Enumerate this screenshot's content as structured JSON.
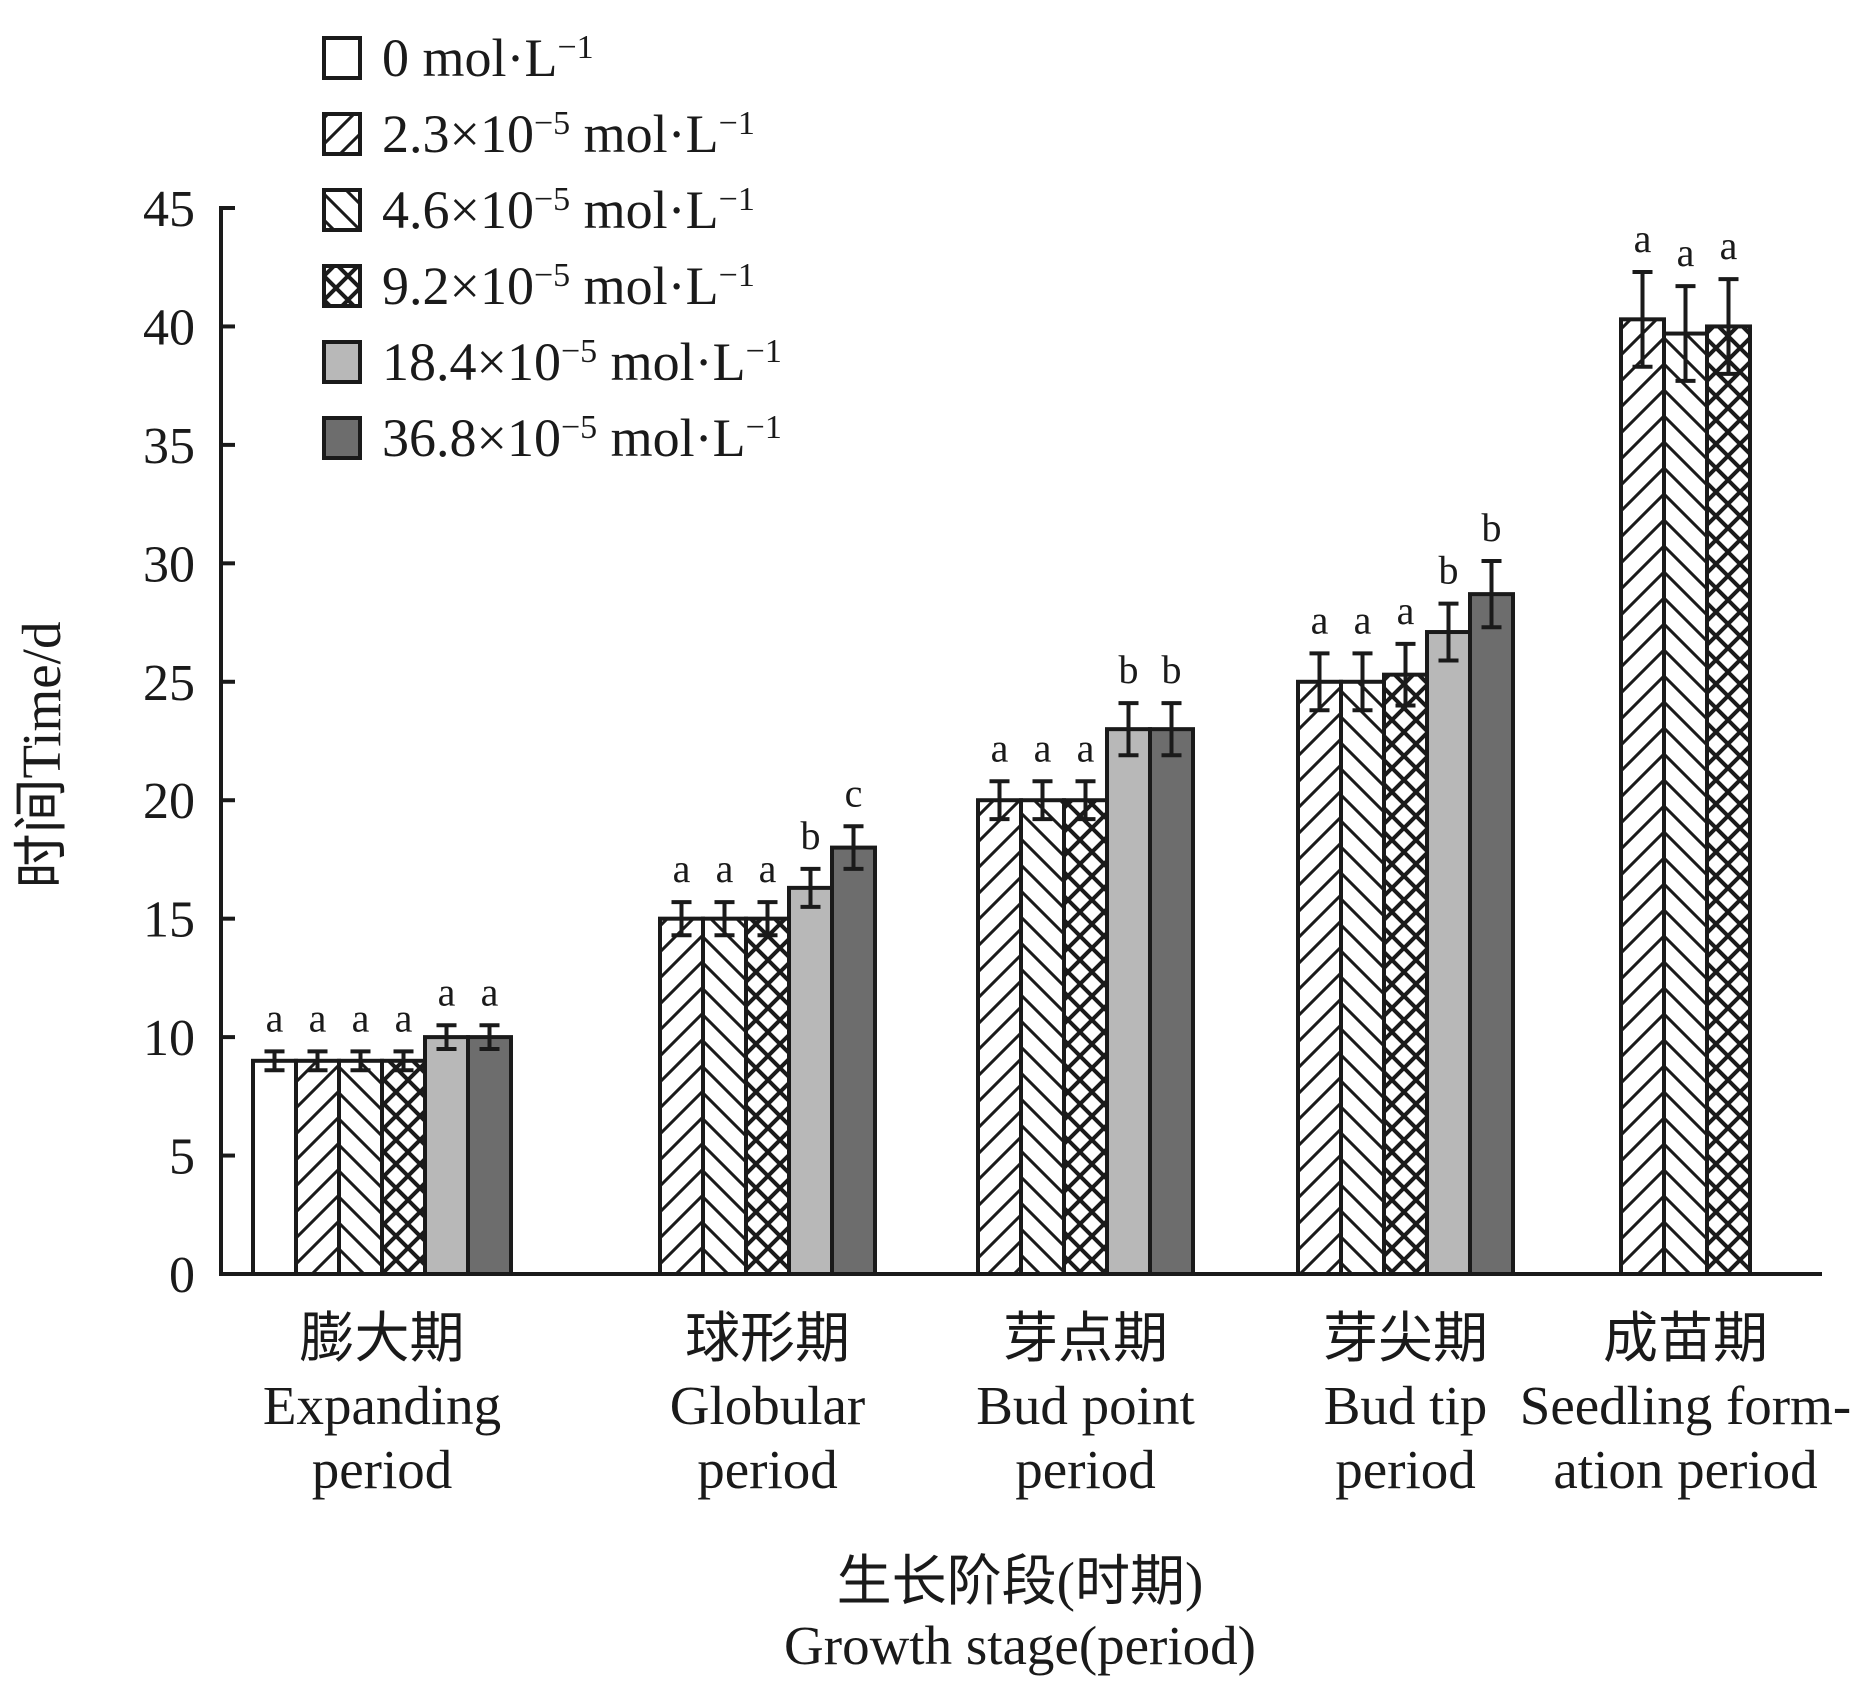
{
  "chart_data": {
    "type": "bar",
    "ylabel": "时间Time/d",
    "xlabel_cn": "生长阶段(时期)",
    "xlabel_en": "Growth stage(period)",
    "ylim": [
      0,
      45
    ],
    "yticks": [
      0,
      5,
      10,
      15,
      20,
      25,
      30,
      35,
      40,
      45
    ],
    "legend_position": "top-left",
    "grid": false,
    "categories": [
      {
        "cn": "膨大期",
        "en1": "Expanding",
        "en2": "period"
      },
      {
        "cn": "球形期",
        "en1": "Globular",
        "en2": "period"
      },
      {
        "cn": "芽点期",
        "en1": "Bud point",
        "en2": "period"
      },
      {
        "cn": "芽尖期",
        "en1": "Bud tip",
        "en2": "period"
      },
      {
        "cn": "成苗期",
        "en1": "Seedling form-",
        "en2": "ation period"
      }
    ],
    "series": [
      {
        "name": "0 mol·L",
        "fill": "#ffffff",
        "pattern": "none",
        "values": [
          9,
          null,
          null,
          null,
          null
        ],
        "errors": [
          0.4,
          null,
          null,
          null,
          null
        ],
        "sig": [
          "a",
          null,
          null,
          null,
          null
        ]
      },
      {
        "name": "2.3×10 mol·L",
        "fill": "#ffffff",
        "pattern": "diag-right",
        "values": [
          9,
          15,
          20,
          25,
          40.3
        ],
        "errors": [
          0.4,
          0.7,
          0.8,
          1.2,
          2.0
        ],
        "sig": [
          "a",
          "a",
          "a",
          "a",
          "a"
        ]
      },
      {
        "name": "4.6×10 mol·L",
        "fill": "#ffffff",
        "pattern": "diag-left",
        "values": [
          9,
          15,
          20,
          25,
          39.7
        ],
        "errors": [
          0.4,
          0.7,
          0.8,
          1.2,
          2.0
        ],
        "sig": [
          "a",
          "a",
          "a",
          "a",
          "a"
        ]
      },
      {
        "name": "9.2×10 mol·L",
        "fill": "#ffffff",
        "pattern": "crosshatch",
        "values": [
          9,
          15,
          20,
          25.3,
          40
        ],
        "errors": [
          0.4,
          0.7,
          0.8,
          1.3,
          2.0
        ],
        "sig": [
          "a",
          "a",
          "a",
          "a",
          "a"
        ]
      },
      {
        "name": "18.4×10 mol·L",
        "fill": "#b8b8b8",
        "pattern": "none",
        "values": [
          10,
          16.3,
          23,
          27.1,
          null
        ],
        "errors": [
          0.5,
          0.8,
          1.1,
          1.2,
          null
        ],
        "sig": [
          "a",
          "b",
          "b",
          "b",
          null
        ]
      },
      {
        "name": "36.8×10 mol·L",
        "fill": "#6d6d6d",
        "pattern": "none",
        "values": [
          10,
          18,
          23,
          28.7,
          null
        ],
        "errors": [
          0.5,
          0.9,
          1.1,
          1.4,
          null
        ],
        "sig": [
          "a",
          "c",
          "b",
          "b",
          null
        ]
      }
    ],
    "legend_superscripts": {
      "exp": "−5",
      "unit_exp": "−1"
    }
  }
}
